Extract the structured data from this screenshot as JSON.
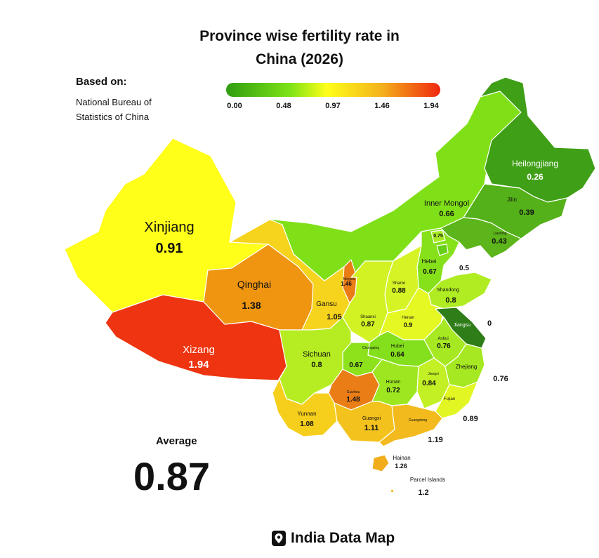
{
  "title_line1": "Province wise fertility rate in",
  "title_line2": "China (2026)",
  "source": {
    "heading": "Based on:",
    "text": "National Bureau of Statistics of China"
  },
  "legend": {
    "ticks": [
      "0.00",
      "0.48",
      "0.97",
      "1.46",
      "1.94"
    ],
    "colors": [
      "#2f9d10",
      "#7ee316",
      "#ffff1a",
      "#f4b41c",
      "#f0280f"
    ]
  },
  "regions": {
    "xinjiang": {
      "name": "Xinjiang",
      "value": "0.91",
      "color": "#ffff1a"
    },
    "xizang": {
      "name": "Xizang",
      "value": "1.94",
      "color": "#ee3410"
    },
    "qinghai": {
      "name": "Qinghai",
      "value": "1.38",
      "color": "#ef9510"
    },
    "gansu": {
      "name": "Gansu",
      "value": "1.05",
      "color": "#f6d31c"
    },
    "ningxia": {
      "name": "Ningxia",
      "value": "1.46",
      "color": "#ea7c15"
    },
    "inner_mongol": {
      "name": "Inner Mongol",
      "value": "0.66",
      "color": "#80e018"
    },
    "heilongjiang": {
      "name": "Heilongjiang",
      "value": "0.26",
      "color": "#3f9f16"
    },
    "jilin": {
      "name": "Jilin",
      "value": "0.39",
      "color": "#54b119"
    },
    "liaoning": {
      "name": "Liaoning",
      "value": "0.43",
      "color": "#5cb51a"
    },
    "beijing": {
      "value": "0.75",
      "color": "#a9ea22"
    },
    "hebei": {
      "name": "Hebei",
      "value": "0.67",
      "color": "#86e11a"
    },
    "tianjin": {
      "value": "0.5",
      "color": "#68cf18"
    },
    "shandong": {
      "name": "Shandong",
      "value": "0.8",
      "color": "#b0ec22"
    },
    "shanxi": {
      "name": "Shanxi",
      "value": "0.88",
      "color": "#d6f425"
    },
    "shaanxi": {
      "name": "Shaanxi",
      "value": "0.87",
      "color": "#d2f224"
    },
    "henan": {
      "name": "Henan",
      "value": "0.9",
      "color": "#e6f824"
    },
    "jiangsu": {
      "name": "Jiangsu",
      "value": "0",
      "color": "#2e7d18"
    },
    "anhui": {
      "name": "Anhui",
      "value": "0.76",
      "color": "#a6e922"
    },
    "hubei": {
      "name": "Hubei",
      "value": "0.64",
      "color": "#84df1c"
    },
    "chongqing": {
      "name": "Chongqing",
      "value": "0.67",
      "color": "#8ee21c"
    },
    "sichuan": {
      "name": "Sichuan",
      "value": "0.8",
      "color": "#b6ed22"
    },
    "guizhou": {
      "name": "Guizhou",
      "value": "1.48",
      "color": "#ea7d16"
    },
    "hunan": {
      "name": "Hunan",
      "value": "0.72",
      "color": "#9ee720"
    },
    "jiangxi": {
      "name": "Jiangxi",
      "value": "0.84",
      "color": "#c2f024"
    },
    "zhejiang": {
      "name": "Zhejiang",
      "value": "0.76",
      "color": "#a6e922"
    },
    "fujian": {
      "name": "Fujian",
      "value": "0.89",
      "color": "#e2f624"
    },
    "yunnan": {
      "name": "Yunnan",
      "value": "1.08",
      "color": "#f5cf1c"
    },
    "guangxi": {
      "name": "Guangxi",
      "value": "1.11",
      "color": "#f3c21c"
    },
    "guangdong": {
      "name": "Guangdong",
      "value": "1.19",
      "color": "#f2ba1c"
    },
    "hainan": {
      "name": "Hainan",
      "value": "1.26",
      "color": "#f1ad1c"
    },
    "parcel": {
      "name": "Parcel Islands",
      "value": "1.2",
      "color": "#f2b81c"
    },
    "shanghai": {
      "value": "0.76"
    }
  },
  "average": {
    "label": "Average",
    "value": "0.87"
  },
  "brand": {
    "name": "India Data Map"
  }
}
